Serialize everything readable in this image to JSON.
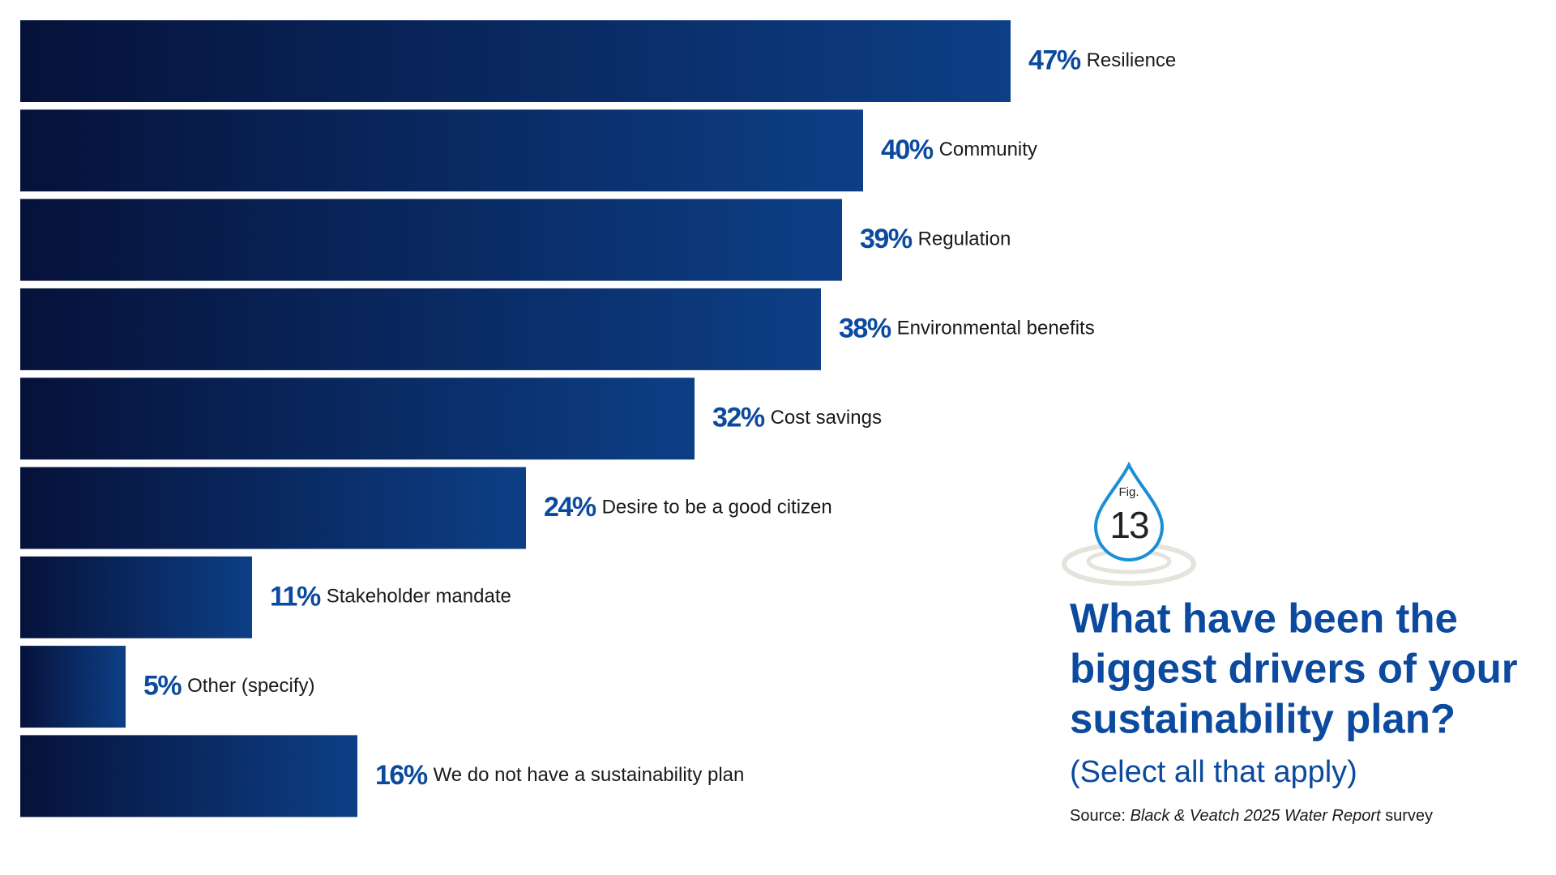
{
  "chart_data": {
    "type": "bar",
    "orientation": "horizontal",
    "categories": [
      "Resilience",
      "Community",
      "Regulation",
      "Environmental benefits",
      "Cost savings",
      "Desire to be a good citizen",
      "Stakeholder mandate",
      "Other (specify)",
      "We do not have a sustainability plan"
    ],
    "values": [
      47,
      40,
      39,
      38,
      32,
      24,
      11,
      5,
      16
    ],
    "value_labels": [
      "47%",
      "40%",
      "39%",
      "38%",
      "32%",
      "24%",
      "11%",
      "5%",
      "16%"
    ],
    "color": [
      "#06123a",
      "#0d3f86"
    ],
    "figure_label": "Fig.",
    "figure_number": "13",
    "title": [
      "What have been the",
      "biggest drivers of your",
      "sustainability plan?"
    ],
    "subtitle": "(Select all that apply)",
    "source": {
      "prefix": "Source: ",
      "work": "Black & Veatch 2025 Water Report",
      "suffix": " survey"
    }
  }
}
